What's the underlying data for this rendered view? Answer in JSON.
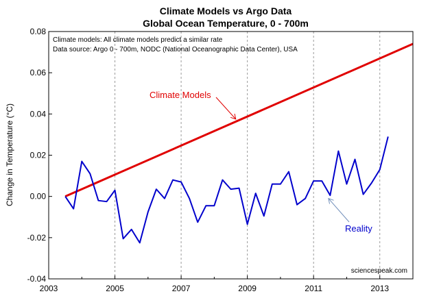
{
  "chart_data": {
    "type": "line",
    "title": "Climate Models vs Argo Data",
    "subtitle": "Global Ocean Temperature, 0 - 700m",
    "xlabel": "",
    "ylabel": "Change in Temperature  (°C)",
    "xlim": [
      2003,
      2014
    ],
    "ylim": [
      -0.04,
      0.08
    ],
    "x_ticks": [
      2003,
      2005,
      2007,
      2009,
      2011,
      2013
    ],
    "x_tick_labels": [
      "2003",
      "2005",
      "2007",
      "2009",
      "2011",
      "2013"
    ],
    "y_ticks": [
      -0.04,
      -0.02,
      0.0,
      0.02,
      0.04,
      0.06,
      0.08
    ],
    "y_tick_labels": [
      "-0.04",
      "-0.02",
      "0.00",
      "0.02",
      "0.04",
      "0.06",
      "0.08"
    ],
    "grid": "vertical dashed",
    "notes": [
      "Climate models: All climate models predict a similar rate",
      "Data source: Argo 0 - 700m, NODC (National Oceanographic Data Center), USA"
    ],
    "credit": "sciencespeak.com",
    "series": [
      {
        "name": "Climate Models",
        "color": "#e00000",
        "x": [
          2003.5,
          2014.0
        ],
        "y": [
          0.0,
          0.074
        ]
      },
      {
        "name": "Reality",
        "color": "#0000cc",
        "x": [
          2003.5,
          2003.75,
          2004.0,
          2004.25,
          2004.5,
          2004.75,
          2005.0,
          2005.25,
          2005.5,
          2005.75,
          2006.0,
          2006.25,
          2006.5,
          2006.75,
          2007.0,
          2007.25,
          2007.5,
          2007.75,
          2008.0,
          2008.25,
          2008.5,
          2008.75,
          2009.0,
          2009.25,
          2009.5,
          2009.75,
          2010.0,
          2010.25,
          2010.5,
          2010.75,
          2011.0,
          2011.25,
          2011.5,
          2011.75,
          2012.0,
          2012.25,
          2012.5,
          2012.75,
          2013.0,
          2013.25
        ],
        "y": [
          0.0,
          -0.006,
          0.017,
          0.011,
          -0.002,
          -0.0025,
          0.003,
          -0.0205,
          -0.016,
          -0.0225,
          -0.0075,
          0.0035,
          -0.001,
          0.008,
          0.007,
          -0.001,
          -0.0125,
          -0.0045,
          -0.0045,
          0.008,
          0.0035,
          0.004,
          -0.0135,
          0.0015,
          -0.0095,
          0.006,
          0.006,
          0.012,
          -0.004,
          -0.001,
          0.0075,
          0.0075,
          0.0005,
          0.022,
          0.006,
          0.018,
          0.001,
          0.0065,
          0.013,
          0.029
        ]
      }
    ],
    "annotations": [
      {
        "text": "Climate Models",
        "color": "#e00000",
        "arrow_to": [
          2008.65,
          0.0375
        ]
      },
      {
        "text": "Reality",
        "color": "#0000cc",
        "arrow_to": [
          2011.45,
          -0.001
        ]
      }
    ]
  }
}
